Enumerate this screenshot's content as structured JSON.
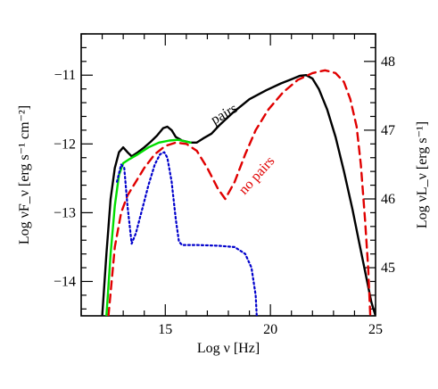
{
  "chart_data": {
    "type": "line",
    "title": "",
    "xlabel": "Log ν [Hz]",
    "ylabel": "Log νF_ν [erg s⁻¹ cm⁻²]",
    "ylabel_right": "Log νL_ν [erg s⁻¹]",
    "xlim": [
      11,
      25
    ],
    "ylim": [
      -14.5,
      -10.4
    ],
    "x_ticks": [
      15,
      20,
      25
    ],
    "y_ticks": [
      -14,
      -13,
      -12,
      -11
    ],
    "y2_offset": 58.8,
    "y2_ticks": [
      45,
      46,
      47,
      48
    ],
    "grid": false,
    "legend": "none",
    "series": [
      {
        "label": "pairs",
        "color": "#000000",
        "style": "solid",
        "points": [
          [
            12.0,
            -14.5
          ],
          [
            12.2,
            -13.6
          ],
          [
            12.4,
            -12.8
          ],
          [
            12.6,
            -12.35
          ],
          [
            12.8,
            -12.12
          ],
          [
            13.0,
            -12.05
          ],
          [
            13.2,
            -12.12
          ],
          [
            13.4,
            -12.18
          ],
          [
            13.7,
            -12.12
          ],
          [
            14.0,
            -12.05
          ],
          [
            14.3,
            -11.97
          ],
          [
            14.6,
            -11.88
          ],
          [
            14.9,
            -11.77
          ],
          [
            15.1,
            -11.75
          ],
          [
            15.3,
            -11.8
          ],
          [
            15.5,
            -11.9
          ],
          [
            15.8,
            -11.95
          ],
          [
            16.2,
            -11.98
          ],
          [
            16.5,
            -11.98
          ],
          [
            16.8,
            -11.92
          ],
          [
            17.2,
            -11.85
          ],
          [
            17.6,
            -11.72
          ],
          [
            18.2,
            -11.55
          ],
          [
            19.0,
            -11.35
          ],
          [
            19.8,
            -11.22
          ],
          [
            20.5,
            -11.12
          ],
          [
            21.0,
            -11.06
          ],
          [
            21.4,
            -11.01
          ],
          [
            21.7,
            -11.0
          ],
          [
            22.0,
            -11.05
          ],
          [
            22.3,
            -11.2
          ],
          [
            22.7,
            -11.5
          ],
          [
            23.1,
            -11.9
          ],
          [
            23.5,
            -12.4
          ],
          [
            23.9,
            -12.95
          ],
          [
            24.2,
            -13.4
          ],
          [
            24.5,
            -13.85
          ],
          [
            24.8,
            -14.3
          ],
          [
            25.0,
            -14.5
          ]
        ]
      },
      {
        "label": "no pairs",
        "color": "#e00000",
        "style": "dashed",
        "points": [
          [
            12.3,
            -14.5
          ],
          [
            12.6,
            -13.5
          ],
          [
            12.9,
            -13.0
          ],
          [
            13.2,
            -12.75
          ],
          [
            13.6,
            -12.55
          ],
          [
            14.0,
            -12.35
          ],
          [
            14.5,
            -12.15
          ],
          [
            15.0,
            -12.03
          ],
          [
            15.5,
            -11.98
          ],
          [
            16.0,
            -12.0
          ],
          [
            16.5,
            -12.1
          ],
          [
            17.0,
            -12.35
          ],
          [
            17.5,
            -12.65
          ],
          [
            17.85,
            -12.8
          ],
          [
            18.3,
            -12.55
          ],
          [
            18.8,
            -12.15
          ],
          [
            19.3,
            -11.8
          ],
          [
            19.9,
            -11.5
          ],
          [
            20.6,
            -11.25
          ],
          [
            21.3,
            -11.07
          ],
          [
            22.0,
            -10.97
          ],
          [
            22.6,
            -10.93
          ],
          [
            23.1,
            -10.97
          ],
          [
            23.5,
            -11.1
          ],
          [
            23.8,
            -11.35
          ],
          [
            24.1,
            -11.75
          ],
          [
            24.3,
            -12.3
          ],
          [
            24.5,
            -13.1
          ],
          [
            24.65,
            -13.8
          ],
          [
            24.75,
            -14.5
          ]
        ]
      },
      {
        "label": "",
        "color": "#00dd00",
        "style": "solid",
        "points": [
          [
            12.2,
            -14.5
          ],
          [
            12.4,
            -13.6
          ],
          [
            12.6,
            -12.9
          ],
          [
            12.8,
            -12.45
          ],
          [
            13.0,
            -12.28
          ],
          [
            13.3,
            -12.22
          ],
          [
            13.7,
            -12.15
          ],
          [
            14.2,
            -12.05
          ],
          [
            14.7,
            -11.98
          ],
          [
            15.2,
            -11.95
          ],
          [
            15.6,
            -11.94
          ],
          [
            15.9,
            -11.96
          ],
          [
            16.2,
            -11.98
          ]
        ]
      },
      {
        "label": "",
        "color": "#0000cc",
        "style": "dotted",
        "points": [
          [
            12.7,
            -12.55
          ],
          [
            12.9,
            -12.3
          ],
          [
            13.05,
            -12.35
          ],
          [
            13.2,
            -12.9
          ],
          [
            13.4,
            -13.45
          ],
          [
            13.6,
            -13.3
          ],
          [
            13.9,
            -12.95
          ],
          [
            14.2,
            -12.6
          ],
          [
            14.5,
            -12.3
          ],
          [
            14.75,
            -12.15
          ],
          [
            14.95,
            -12.12
          ],
          [
            15.1,
            -12.2
          ],
          [
            15.3,
            -12.55
          ],
          [
            15.5,
            -13.1
          ],
          [
            15.65,
            -13.42
          ],
          [
            15.8,
            -13.47
          ],
          [
            16.5,
            -13.47
          ],
          [
            17.5,
            -13.48
          ],
          [
            18.3,
            -13.5
          ],
          [
            18.8,
            -13.6
          ],
          [
            19.1,
            -13.8
          ],
          [
            19.3,
            -14.2
          ],
          [
            19.35,
            -14.5
          ]
        ]
      }
    ],
    "annotations": [
      {
        "text": "pairs",
        "x": 17.9,
        "y": -11.62,
        "color": "#000000",
        "rotation": -30
      },
      {
        "text": "no pairs",
        "x": 19.5,
        "y": -12.5,
        "color": "#e00000",
        "rotation": -48
      }
    ]
  }
}
